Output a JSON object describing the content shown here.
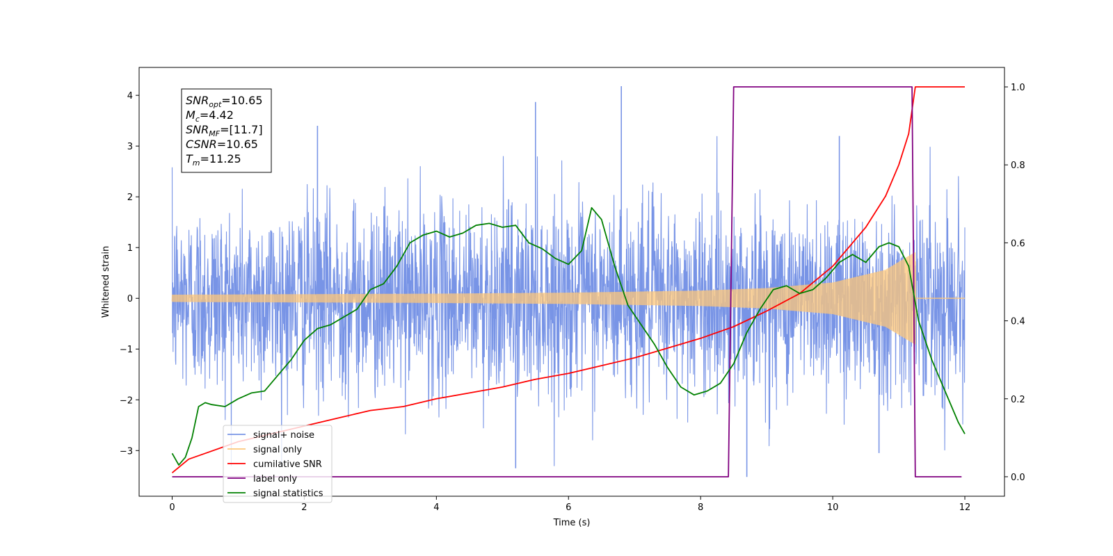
{
  "chart_data": {
    "type": "line",
    "xlabel": "Time (s)",
    "ylabel": "Whitened strain",
    "ylabel_right": "",
    "xlim": [
      -0.5,
      12.6
    ],
    "ylim": [
      -3.9,
      4.55
    ],
    "ylim_right": [
      -0.05,
      1.05
    ],
    "x_ticks": [
      0,
      2,
      4,
      6,
      8,
      10,
      12
    ],
    "y_ticks": [
      -3,
      -2,
      -1,
      0,
      1,
      2,
      3,
      4
    ],
    "y_ticks_right": [
      0.0,
      0.2,
      0.4,
      0.6,
      0.8,
      1.0
    ],
    "grid": false,
    "legend_position": "lower-left",
    "annotations": [
      {
        "base": "SNR",
        "sub": "opt",
        "value": "=10.65"
      },
      {
        "base": "M",
        "sub": "c",
        "value": "=4.42"
      },
      {
        "base": "SNR",
        "sub": "MF",
        "value": "=[11.7]"
      },
      {
        "base": "CSNR",
        "sub": "",
        "value": "=10.65"
      },
      {
        "base": "T",
        "sub": "m",
        "value": "=11.25"
      }
    ],
    "series": [
      {
        "name": "signal+ noise",
        "color": "#7894e6",
        "axis": "left",
        "kind": "noise",
        "t_range": [
          0,
          12
        ],
        "typical_amplitude": 1.5,
        "peak_values": [
          [
            6.8,
            4.18
          ],
          [
            5.5,
            3.87
          ],
          [
            2.2,
            3.4
          ],
          [
            10.1,
            3.2
          ],
          [
            10.7,
            -3.05
          ],
          [
            8.7,
            -3.52
          ],
          [
            5.2,
            -3.35
          ]
        ]
      },
      {
        "name": "signal only",
        "color": "#fdc77a",
        "axis": "left",
        "kind": "chirp",
        "t_range": [
          0,
          12
        ],
        "envelope": [
          [
            0,
            0.06
          ],
          [
            2,
            0.07
          ],
          [
            4,
            0.08
          ],
          [
            6,
            0.1
          ],
          [
            8,
            0.14
          ],
          [
            9,
            0.19
          ],
          [
            10,
            0.3
          ],
          [
            10.8,
            0.55
          ],
          [
            11.25,
            0.9
          ],
          [
            11.26,
            0.0
          ],
          [
            12,
            0.0
          ]
        ]
      },
      {
        "name": "cumilative SNR",
        "color": "#ff0000",
        "axis": "right",
        "x": [
          0,
          0.25,
          0.5,
          1,
          1.5,
          2,
          2.5,
          3,
          3.5,
          4,
          4.5,
          5,
          5.5,
          6,
          6.5,
          7,
          7.5,
          8,
          8.5,
          9,
          9.5,
          10,
          10.5,
          10.8,
          11,
          11.15,
          11.25,
          12
        ],
        "values": [
          0.01,
          0.045,
          0.06,
          0.09,
          0.11,
          0.13,
          0.15,
          0.17,
          0.18,
          0.2,
          0.215,
          0.23,
          0.25,
          0.265,
          0.285,
          0.305,
          0.33,
          0.355,
          0.385,
          0.425,
          0.47,
          0.54,
          0.64,
          0.72,
          0.8,
          0.88,
          1.0,
          1.0
        ]
      },
      {
        "name": "label only",
        "color": "#800080",
        "axis": "right",
        "x": [
          0,
          8.42,
          8.5,
          11.2,
          11.25,
          11.95
        ],
        "values": [
          0,
          0,
          1,
          1,
          0,
          0
        ]
      },
      {
        "name": "signal statistics",
        "color": "#008000",
        "axis": "right",
        "x": [
          0,
          0.1,
          0.2,
          0.3,
          0.4,
          0.5,
          0.6,
          0.8,
          1.0,
          1.2,
          1.4,
          1.6,
          1.8,
          2.0,
          2.2,
          2.4,
          2.6,
          2.8,
          3.0,
          3.2,
          3.4,
          3.6,
          3.8,
          4.0,
          4.2,
          4.4,
          4.6,
          4.8,
          5.0,
          5.2,
          5.4,
          5.6,
          5.8,
          6.0,
          6.2,
          6.35,
          6.5,
          6.7,
          6.9,
          7.1,
          7.3,
          7.5,
          7.7,
          7.9,
          8.1,
          8.3,
          8.5,
          8.7,
          8.9,
          9.1,
          9.3,
          9.5,
          9.7,
          9.9,
          10.1,
          10.3,
          10.5,
          10.7,
          10.85,
          11.0,
          11.15,
          11.3,
          11.5,
          11.7,
          11.9,
          12.0
        ],
        "values": [
          0.06,
          0.03,
          0.05,
          0.1,
          0.18,
          0.19,
          0.185,
          0.18,
          0.2,
          0.215,
          0.22,
          0.26,
          0.3,
          0.35,
          0.38,
          0.39,
          0.41,
          0.43,
          0.48,
          0.495,
          0.54,
          0.6,
          0.62,
          0.63,
          0.615,
          0.625,
          0.645,
          0.65,
          0.64,
          0.645,
          0.6,
          0.585,
          0.56,
          0.545,
          0.58,
          0.69,
          0.66,
          0.54,
          0.44,
          0.39,
          0.34,
          0.28,
          0.23,
          0.21,
          0.22,
          0.24,
          0.29,
          0.37,
          0.43,
          0.48,
          0.49,
          0.47,
          0.48,
          0.51,
          0.55,
          0.57,
          0.55,
          0.59,
          0.6,
          0.59,
          0.54,
          0.4,
          0.3,
          0.22,
          0.14,
          0.11
        ]
      }
    ]
  }
}
